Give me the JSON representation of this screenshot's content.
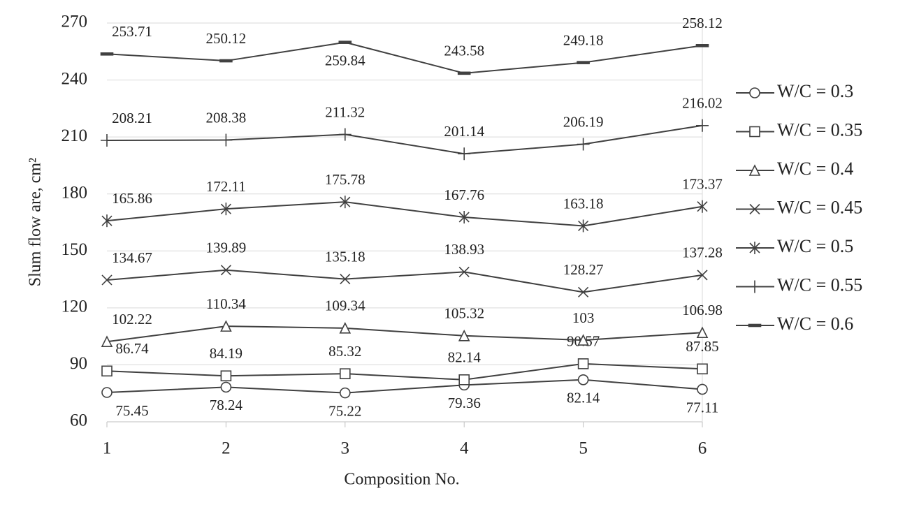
{
  "chart_data": {
    "type": "line",
    "x_label": "Composition No.",
    "y_label": "Slum flow are, cm²",
    "x": [
      1,
      2,
      3,
      4,
      5,
      6
    ],
    "xlim": [
      1,
      6
    ],
    "xticks": [
      1,
      2,
      3,
      4,
      5,
      6
    ],
    "ylim": [
      60,
      270
    ],
    "yticks": [
      60,
      90,
      120,
      150,
      180,
      210,
      240,
      270
    ],
    "grid": true,
    "legend": "right",
    "series": [
      {
        "name": "W/C = 0.3",
        "marker": "circle",
        "color": "#404040",
        "values": [
          75.45,
          78.24,
          75.22,
          79.36,
          82.14,
          77.11
        ]
      },
      {
        "name": "W/C = 0.35",
        "marker": "square",
        "color": "#404040",
        "values": [
          86.74,
          84.19,
          85.32,
          82.14,
          90.57,
          87.85
        ]
      },
      {
        "name": "W/C = 0.4",
        "marker": "triangle",
        "color": "#404040",
        "values": [
          102.22,
          110.34,
          109.34,
          105.32,
          103,
          106.98
        ]
      },
      {
        "name": "W/C = 0.45",
        "marker": "x",
        "color": "#404040",
        "values": [
          134.67,
          139.89,
          135.18,
          138.93,
          128.27,
          137.28
        ]
      },
      {
        "name": "W/C = 0.5",
        "marker": "star",
        "color": "#404040",
        "values": [
          165.86,
          172.11,
          175.78,
          167.76,
          163.18,
          173.37
        ]
      },
      {
        "name": "W/C = 0.55",
        "marker": "plus",
        "color": "#404040",
        "values": [
          208.21,
          208.38,
          211.32,
          201.14,
          206.19,
          216.02
        ]
      },
      {
        "name": "W/C = 0.6",
        "marker": "dash",
        "color": "#404040",
        "values": [
          253.71,
          250.12,
          259.84,
          243.58,
          249.18,
          258.12
        ]
      }
    ]
  }
}
